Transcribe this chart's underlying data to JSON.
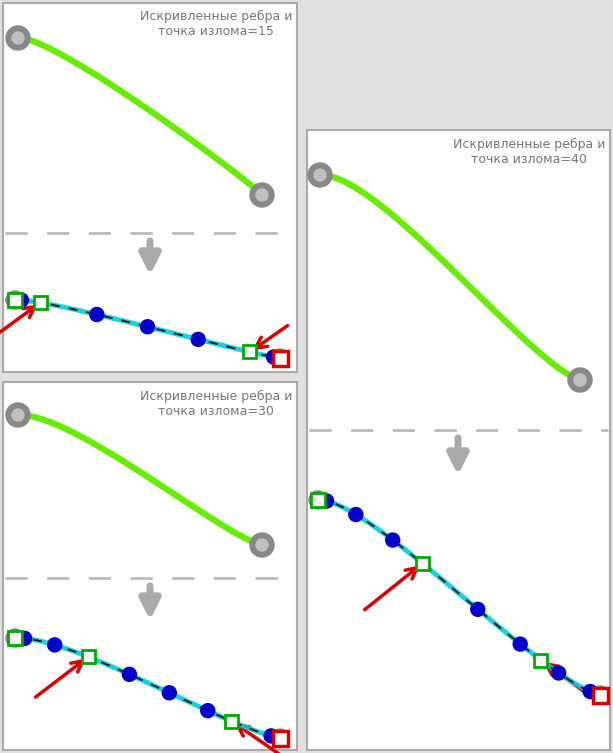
{
  "bg": "#e0e0e0",
  "white": "#ffffff",
  "border": "#aaaaaa",
  "green": "#66ee00",
  "cyan": "#00ccdd",
  "blue_dot": "#0000cc",
  "gray_outer": "#888888",
  "gray_inner": "#c0c0c0",
  "red": "#dd0000",
  "dark": "#111111",
  "green_sq": "#00aa00",
  "arrow_gray": "#aaaaaa",
  "label_color": "#777777",
  "label_15": "Искривленные ребра и\nточка излома=15",
  "label_30": "Искривленные ребра и\nточка излома=30",
  "label_40": "Искривленные ребра и\nточка излома=40"
}
